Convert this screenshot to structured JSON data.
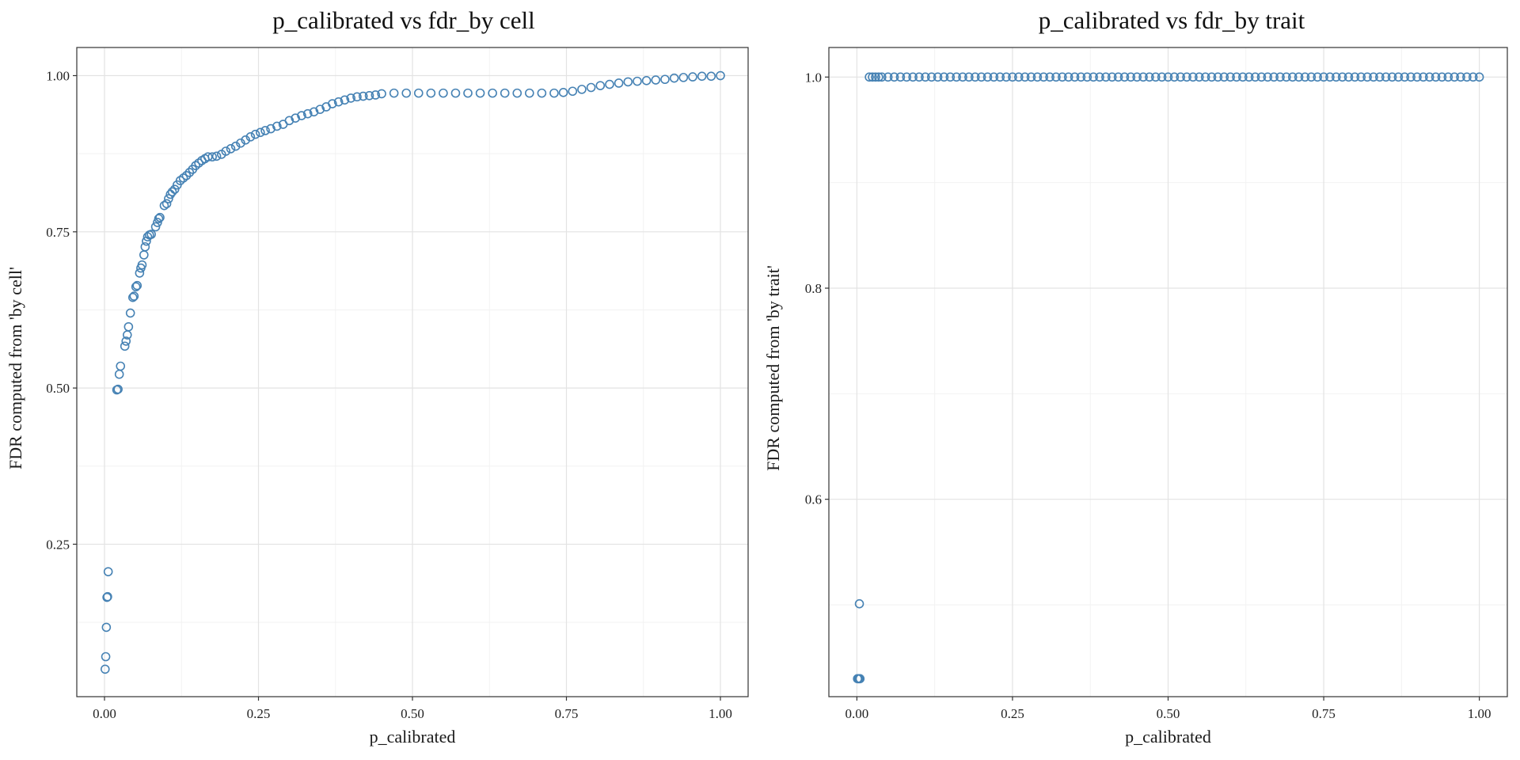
{
  "chart_data": [
    {
      "type": "scatter",
      "title": "p_calibrated vs fdr_by cell",
      "xlabel": "p_calibrated",
      "ylabel": "FDR computed from 'by cell'",
      "xlim": [
        -0.045,
        1.045
      ],
      "ylim": [
        0.006,
        1.045
      ],
      "xticks": [
        0.0,
        0.25,
        0.5,
        0.75,
        1.0
      ],
      "xtick_labels": [
        "0.00",
        "0.25",
        "0.50",
        "0.75",
        "1.00"
      ],
      "yticks": [
        0.25,
        0.5,
        0.75,
        1.0
      ],
      "ytick_labels": [
        "0.25",
        "0.50",
        "0.75",
        "1.00"
      ],
      "grid": true,
      "marker": "open-circle",
      "color": "#4682B4",
      "points": [
        [
          0.001,
          0.05
        ],
        [
          0.002,
          0.07
        ],
        [
          0.003,
          0.117
        ],
        [
          0.004,
          0.165
        ],
        [
          0.005,
          0.166
        ],
        [
          0.006,
          0.206
        ],
        [
          0.02,
          0.497
        ],
        [
          0.022,
          0.498
        ],
        [
          0.024,
          0.522
        ],
        [
          0.026,
          0.535
        ],
        [
          0.033,
          0.567
        ],
        [
          0.035,
          0.575
        ],
        [
          0.037,
          0.585
        ],
        [
          0.039,
          0.598
        ],
        [
          0.042,
          0.62
        ],
        [
          0.046,
          0.645
        ],
        [
          0.048,
          0.647
        ],
        [
          0.051,
          0.662
        ],
        [
          0.053,
          0.664
        ],
        [
          0.057,
          0.684
        ],
        [
          0.059,
          0.692
        ],
        [
          0.061,
          0.697
        ],
        [
          0.064,
          0.713
        ],
        [
          0.066,
          0.726
        ],
        [
          0.068,
          0.735
        ],
        [
          0.07,
          0.742
        ],
        [
          0.073,
          0.745
        ],
        [
          0.076,
          0.746
        ],
        [
          0.083,
          0.758
        ],
        [
          0.086,
          0.765
        ],
        [
          0.088,
          0.771
        ],
        [
          0.09,
          0.773
        ],
        [
          0.097,
          0.792
        ],
        [
          0.101,
          0.795
        ],
        [
          0.104,
          0.803
        ],
        [
          0.107,
          0.81
        ],
        [
          0.11,
          0.814
        ],
        [
          0.114,
          0.818
        ],
        [
          0.118,
          0.825
        ],
        [
          0.123,
          0.832
        ],
        [
          0.128,
          0.836
        ],
        [
          0.133,
          0.84
        ],
        [
          0.138,
          0.845
        ],
        [
          0.143,
          0.85
        ],
        [
          0.148,
          0.856
        ],
        [
          0.153,
          0.86
        ],
        [
          0.158,
          0.864
        ],
        [
          0.163,
          0.867
        ],
        [
          0.168,
          0.87
        ],
        [
          0.175,
          0.87
        ],
        [
          0.182,
          0.871
        ],
        [
          0.19,
          0.874
        ],
        [
          0.197,
          0.879
        ],
        [
          0.205,
          0.883
        ],
        [
          0.213,
          0.887
        ],
        [
          0.221,
          0.892
        ],
        [
          0.229,
          0.897
        ],
        [
          0.237,
          0.902
        ],
        [
          0.245,
          0.906
        ],
        [
          0.253,
          0.909
        ],
        [
          0.261,
          0.912
        ],
        [
          0.27,
          0.915
        ],
        [
          0.28,
          0.919
        ],
        [
          0.29,
          0.922
        ],
        [
          0.3,
          0.928
        ],
        [
          0.31,
          0.932
        ],
        [
          0.32,
          0.936
        ],
        [
          0.33,
          0.939
        ],
        [
          0.34,
          0.942
        ],
        [
          0.35,
          0.946
        ],
        [
          0.36,
          0.95
        ],
        [
          0.37,
          0.955
        ],
        [
          0.38,
          0.958
        ],
        [
          0.39,
          0.961
        ],
        [
          0.4,
          0.964
        ],
        [
          0.41,
          0.966
        ],
        [
          0.42,
          0.967
        ],
        [
          0.43,
          0.968
        ],
        [
          0.44,
          0.969
        ],
        [
          0.45,
          0.971
        ],
        [
          0.47,
          0.972
        ],
        [
          0.49,
          0.972
        ],
        [
          0.51,
          0.972
        ],
        [
          0.53,
          0.972
        ],
        [
          0.55,
          0.972
        ],
        [
          0.57,
          0.972
        ],
        [
          0.59,
          0.972
        ],
        [
          0.61,
          0.972
        ],
        [
          0.63,
          0.972
        ],
        [
          0.65,
          0.972
        ],
        [
          0.67,
          0.972
        ],
        [
          0.69,
          0.972
        ],
        [
          0.71,
          0.972
        ],
        [
          0.73,
          0.972
        ],
        [
          0.745,
          0.973
        ],
        [
          0.76,
          0.975
        ],
        [
          0.775,
          0.978
        ],
        [
          0.79,
          0.981
        ],
        [
          0.805,
          0.984
        ],
        [
          0.82,
          0.986
        ],
        [
          0.835,
          0.988
        ],
        [
          0.85,
          0.99
        ],
        [
          0.865,
          0.991
        ],
        [
          0.88,
          0.992
        ],
        [
          0.895,
          0.993
        ],
        [
          0.91,
          0.994
        ],
        [
          0.925,
          0.996
        ],
        [
          0.94,
          0.997
        ],
        [
          0.955,
          0.998
        ],
        [
          0.97,
          0.999
        ],
        [
          0.985,
          0.999
        ],
        [
          1.0,
          1.0
        ]
      ]
    },
    {
      "type": "scatter",
      "title": "p_calibrated vs fdr_by trait",
      "xlabel": "p_calibrated",
      "ylabel": "FDR computed from 'by trait'",
      "xlim": [
        -0.045,
        1.045
      ],
      "ylim": [
        0.413,
        1.028
      ],
      "xticks": [
        0.0,
        0.25,
        0.5,
        0.75,
        1.0
      ],
      "xtick_labels": [
        "0.00",
        "0.25",
        "0.50",
        "0.75",
        "1.00"
      ],
      "yticks": [
        0.6,
        0.8,
        1.0
      ],
      "ytick_labels": [
        "0.6",
        "0.8",
        "1.0"
      ],
      "grid": true,
      "marker": "open-circle",
      "color": "#4682B4",
      "points": [
        [
          0.001,
          0.43
        ],
        [
          0.002,
          0.43
        ],
        [
          0.003,
          0.43
        ],
        [
          0.004,
          0.43
        ],
        [
          0.005,
          0.43
        ],
        [
          0.004,
          0.501
        ],
        [
          0.02,
          1.0
        ],
        [
          0.025,
          1.0
        ],
        [
          0.03,
          1.0
        ],
        [
          0.035,
          1.0
        ],
        [
          0.04,
          1.0
        ],
        [
          0.05,
          1.0
        ],
        [
          0.06,
          1.0
        ],
        [
          0.07,
          1.0
        ],
        [
          0.08,
          1.0
        ],
        [
          0.09,
          1.0
        ],
        [
          0.1,
          1.0
        ],
        [
          0.11,
          1.0
        ],
        [
          0.12,
          1.0
        ],
        [
          0.13,
          1.0
        ],
        [
          0.14,
          1.0
        ],
        [
          0.15,
          1.0
        ],
        [
          0.16,
          1.0
        ],
        [
          0.17,
          1.0
        ],
        [
          0.18,
          1.0
        ],
        [
          0.19,
          1.0
        ],
        [
          0.2,
          1.0
        ],
        [
          0.21,
          1.0
        ],
        [
          0.22,
          1.0
        ],
        [
          0.23,
          1.0
        ],
        [
          0.24,
          1.0
        ],
        [
          0.25,
          1.0
        ],
        [
          0.26,
          1.0
        ],
        [
          0.27,
          1.0
        ],
        [
          0.28,
          1.0
        ],
        [
          0.29,
          1.0
        ],
        [
          0.3,
          1.0
        ],
        [
          0.31,
          1.0
        ],
        [
          0.32,
          1.0
        ],
        [
          0.33,
          1.0
        ],
        [
          0.34,
          1.0
        ],
        [
          0.35,
          1.0
        ],
        [
          0.36,
          1.0
        ],
        [
          0.37,
          1.0
        ],
        [
          0.38,
          1.0
        ],
        [
          0.39,
          1.0
        ],
        [
          0.4,
          1.0
        ],
        [
          0.41,
          1.0
        ],
        [
          0.42,
          1.0
        ],
        [
          0.43,
          1.0
        ],
        [
          0.44,
          1.0
        ],
        [
          0.45,
          1.0
        ],
        [
          0.46,
          1.0
        ],
        [
          0.47,
          1.0
        ],
        [
          0.48,
          1.0
        ],
        [
          0.49,
          1.0
        ],
        [
          0.5,
          1.0
        ],
        [
          0.51,
          1.0
        ],
        [
          0.52,
          1.0
        ],
        [
          0.53,
          1.0
        ],
        [
          0.54,
          1.0
        ],
        [
          0.55,
          1.0
        ],
        [
          0.56,
          1.0
        ],
        [
          0.57,
          1.0
        ],
        [
          0.58,
          1.0
        ],
        [
          0.59,
          1.0
        ],
        [
          0.6,
          1.0
        ],
        [
          0.61,
          1.0
        ],
        [
          0.62,
          1.0
        ],
        [
          0.63,
          1.0
        ],
        [
          0.64,
          1.0
        ],
        [
          0.65,
          1.0
        ],
        [
          0.66,
          1.0
        ],
        [
          0.67,
          1.0
        ],
        [
          0.68,
          1.0
        ],
        [
          0.69,
          1.0
        ],
        [
          0.7,
          1.0
        ],
        [
          0.71,
          1.0
        ],
        [
          0.72,
          1.0
        ],
        [
          0.73,
          1.0
        ],
        [
          0.74,
          1.0
        ],
        [
          0.75,
          1.0
        ],
        [
          0.76,
          1.0
        ],
        [
          0.77,
          1.0
        ],
        [
          0.78,
          1.0
        ],
        [
          0.79,
          1.0
        ],
        [
          0.8,
          1.0
        ],
        [
          0.81,
          1.0
        ],
        [
          0.82,
          1.0
        ],
        [
          0.83,
          1.0
        ],
        [
          0.84,
          1.0
        ],
        [
          0.85,
          1.0
        ],
        [
          0.86,
          1.0
        ],
        [
          0.87,
          1.0
        ],
        [
          0.88,
          1.0
        ],
        [
          0.89,
          1.0
        ],
        [
          0.9,
          1.0
        ],
        [
          0.91,
          1.0
        ],
        [
          0.92,
          1.0
        ],
        [
          0.93,
          1.0
        ],
        [
          0.94,
          1.0
        ],
        [
          0.95,
          1.0
        ],
        [
          0.96,
          1.0
        ],
        [
          0.97,
          1.0
        ],
        [
          0.98,
          1.0
        ],
        [
          0.99,
          1.0
        ],
        [
          1.0,
          1.0
        ]
      ]
    }
  ]
}
